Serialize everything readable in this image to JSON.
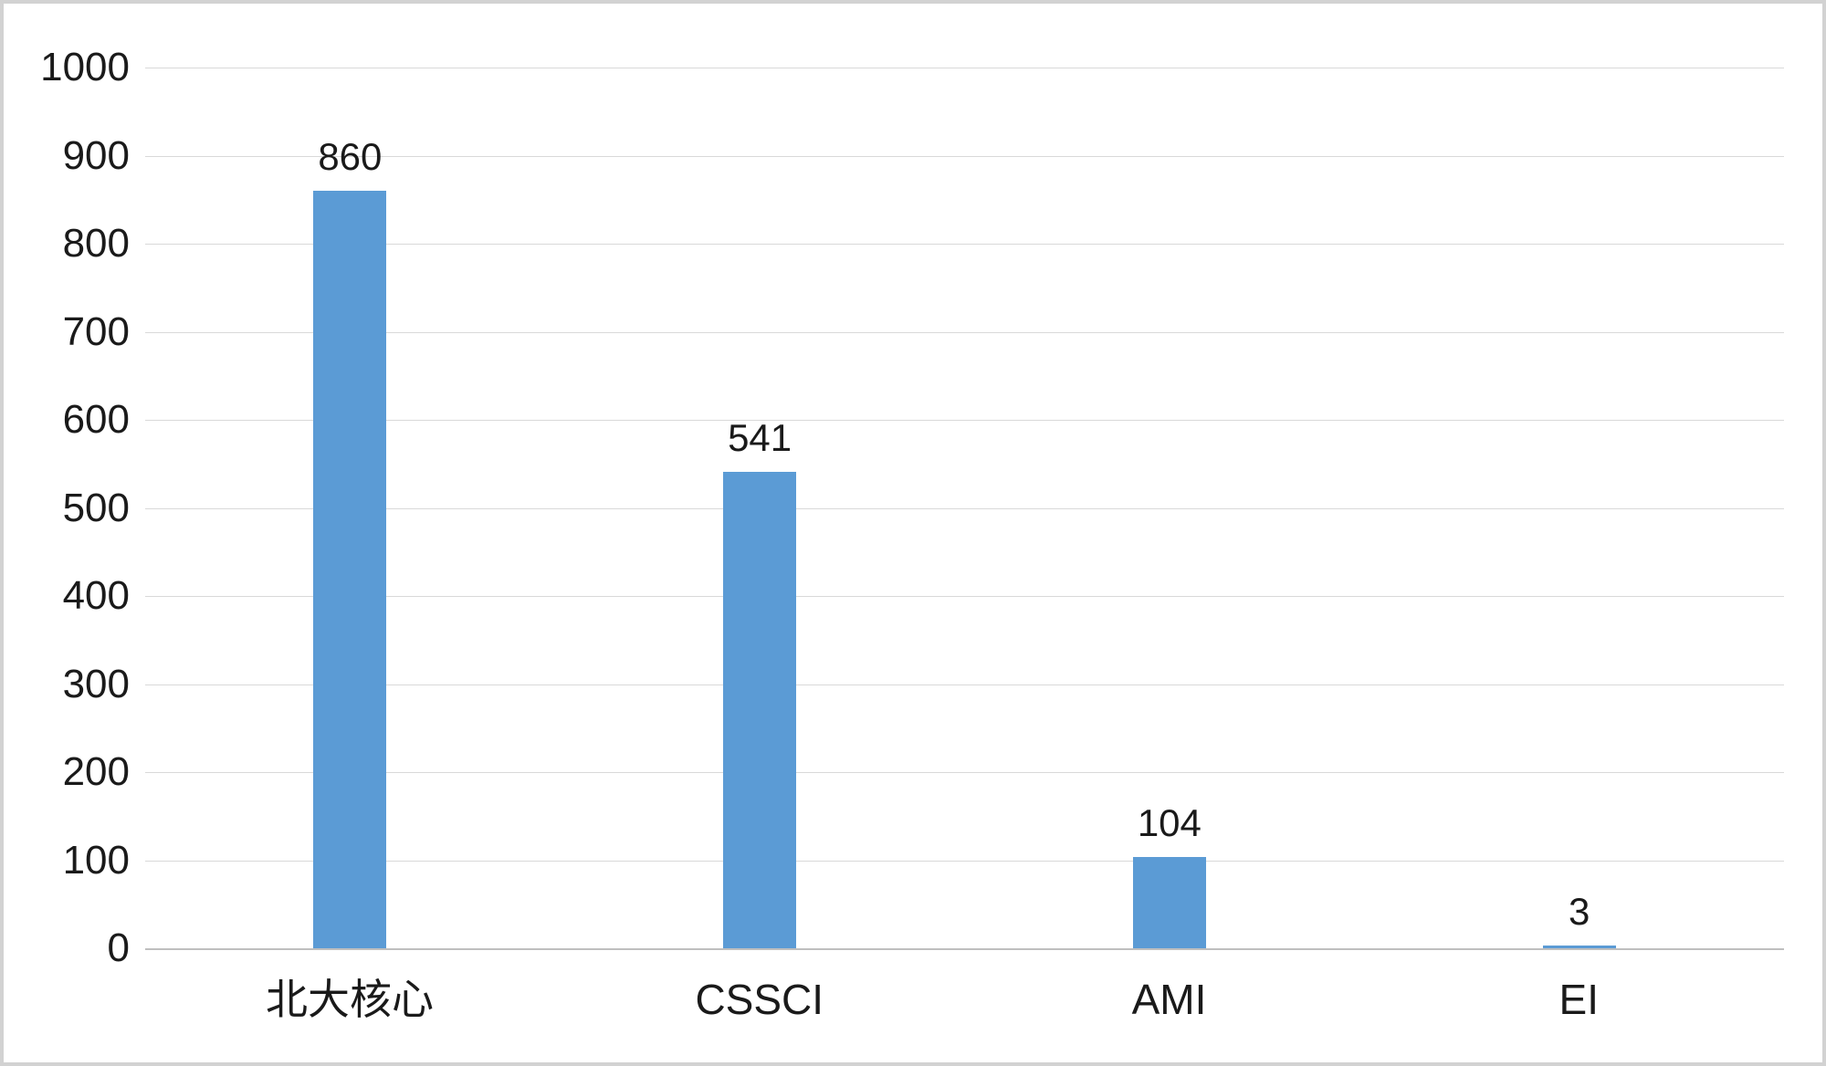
{
  "chart_data": {
    "type": "bar",
    "title": "",
    "xlabel": "",
    "ylabel": "",
    "categories": [
      "北大核心",
      "CSSCI",
      "AMI",
      "EI"
    ],
    "values": [
      860,
      541,
      104,
      3
    ],
    "ylim": [
      0,
      1000
    ],
    "ytick_step": 100,
    "bar_color": "#5B9BD5",
    "grid_color": "#d9d9d9",
    "axis_line_color": "#bfbfbf",
    "legend": "none",
    "grid": "horizontal"
  }
}
